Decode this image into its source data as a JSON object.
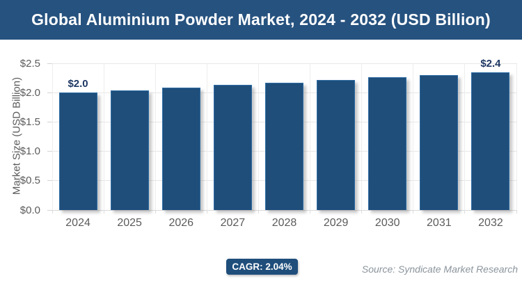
{
  "title": "Global Aluminium Powder Market, 2024 - 2032 (USD Billion)",
  "colors": {
    "banner_bg": "#26527f",
    "bar_fill": "#1f4e7b",
    "bar_stroke": "#2e6da4",
    "gridline": "#e7e7e7",
    "axis_text": "#5b5b5b",
    "data_label_text": "#1f3864",
    "source_text": "#8b949c"
  },
  "chart_data": {
    "type": "bar",
    "title": "Global Aluminium Powder Market, 2024 - 2032 (USD Billion)",
    "categories": [
      "2024",
      "2025",
      "2026",
      "2027",
      "2028",
      "2029",
      "2030",
      "2031",
      "2032"
    ],
    "values": [
      2.0,
      2.04,
      2.08,
      2.13,
      2.17,
      2.21,
      2.26,
      2.3,
      2.35
    ],
    "point_labels": [
      "$2.0",
      null,
      null,
      null,
      null,
      null,
      null,
      null,
      "$2.4"
    ],
    "xlabel": "",
    "ylabel": "Market Size (USD Billion)",
    "ylim": [
      0,
      2.5
    ],
    "ytick_values": [
      0,
      0.5,
      1,
      1.5,
      2,
      2.5
    ],
    "ytick_labels": [
      "$0.0",
      "$0.5",
      "$1.0",
      "$1.5",
      "$2.0",
      "$2.5"
    ],
    "grid": true,
    "legend": "none"
  },
  "footer": {
    "cagr_label": "CAGR: 2.04%",
    "source": "Source: Syndicate Market Research"
  }
}
